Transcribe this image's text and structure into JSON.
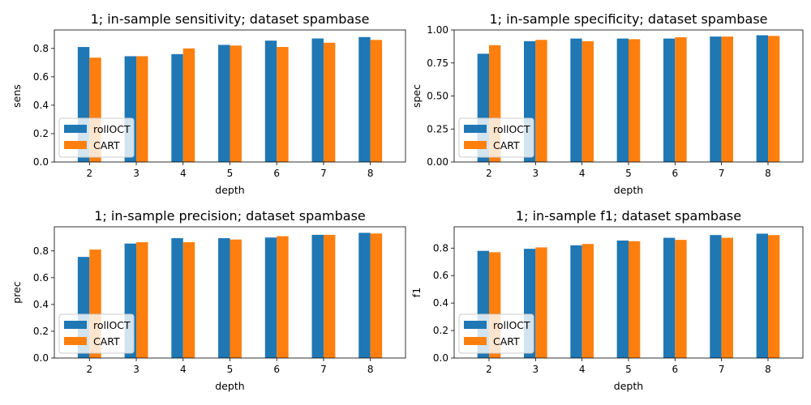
{
  "colors": {
    "rollOCT": "#1f77b4",
    "CART": "#ff7f0e"
  },
  "chart_data": [
    {
      "type": "bar",
      "title": "1; in-sample sensitivity; dataset spambase",
      "xlabel": "depth",
      "ylabel": "sens",
      "categories": [
        "2",
        "3",
        "4",
        "5",
        "6",
        "7",
        "8"
      ],
      "ylim": [
        0,
        0.93
      ],
      "yticks": [
        "0.0",
        "0.2",
        "0.4",
        "0.6",
        "0.8"
      ],
      "legend": "lower-left",
      "series": [
        {
          "name": "rollOCT",
          "values": [
            0.81,
            0.745,
            0.76,
            0.825,
            0.855,
            0.87,
            0.88
          ]
        },
        {
          "name": "CART",
          "values": [
            0.735,
            0.745,
            0.8,
            0.82,
            0.81,
            0.84,
            0.86
          ]
        }
      ]
    },
    {
      "type": "bar",
      "title": "1; in-sample specificity; dataset spambase",
      "xlabel": "depth",
      "ylabel": "spec",
      "categories": [
        "2",
        "3",
        "4",
        "5",
        "6",
        "7",
        "8"
      ],
      "ylim": [
        0,
        1.0
      ],
      "yticks": [
        "0.00",
        "0.25",
        "0.50",
        "0.75",
        "1.00"
      ],
      "legend": "lower-left",
      "series": [
        {
          "name": "rollOCT",
          "values": [
            0.82,
            0.915,
            0.935,
            0.935,
            0.935,
            0.95,
            0.96
          ]
        },
        {
          "name": "CART",
          "values": [
            0.885,
            0.925,
            0.915,
            0.93,
            0.945,
            0.95,
            0.955
          ]
        }
      ]
    },
    {
      "type": "bar",
      "title": "1; in-sample precision; dataset spambase",
      "xlabel": "depth",
      "ylabel": "prec",
      "categories": [
        "2",
        "3",
        "4",
        "5",
        "6",
        "7",
        "8"
      ],
      "ylim": [
        0,
        0.98
      ],
      "yticks": [
        "0.0",
        "0.2",
        "0.4",
        "0.6",
        "0.8"
      ],
      "legend": "lower-left",
      "series": [
        {
          "name": "rollOCT",
          "values": [
            0.755,
            0.855,
            0.895,
            0.895,
            0.9,
            0.92,
            0.935
          ]
        },
        {
          "name": "CART",
          "values": [
            0.81,
            0.865,
            0.865,
            0.885,
            0.91,
            0.92,
            0.93
          ]
        }
      ]
    },
    {
      "type": "bar",
      "title": "1; in-sample f1; dataset spambase",
      "xlabel": "depth",
      "ylabel": "f1",
      "categories": [
        "2",
        "3",
        "4",
        "5",
        "6",
        "7",
        "8"
      ],
      "ylim": [
        0,
        0.955
      ],
      "yticks": [
        "0.0",
        "0.2",
        "0.4",
        "0.6",
        "0.8"
      ],
      "legend": "lower-left",
      "series": [
        {
          "name": "rollOCT",
          "values": [
            0.78,
            0.795,
            0.82,
            0.855,
            0.875,
            0.895,
            0.905
          ]
        },
        {
          "name": "CART",
          "values": [
            0.77,
            0.805,
            0.83,
            0.85,
            0.86,
            0.875,
            0.895
          ]
        }
      ]
    }
  ]
}
